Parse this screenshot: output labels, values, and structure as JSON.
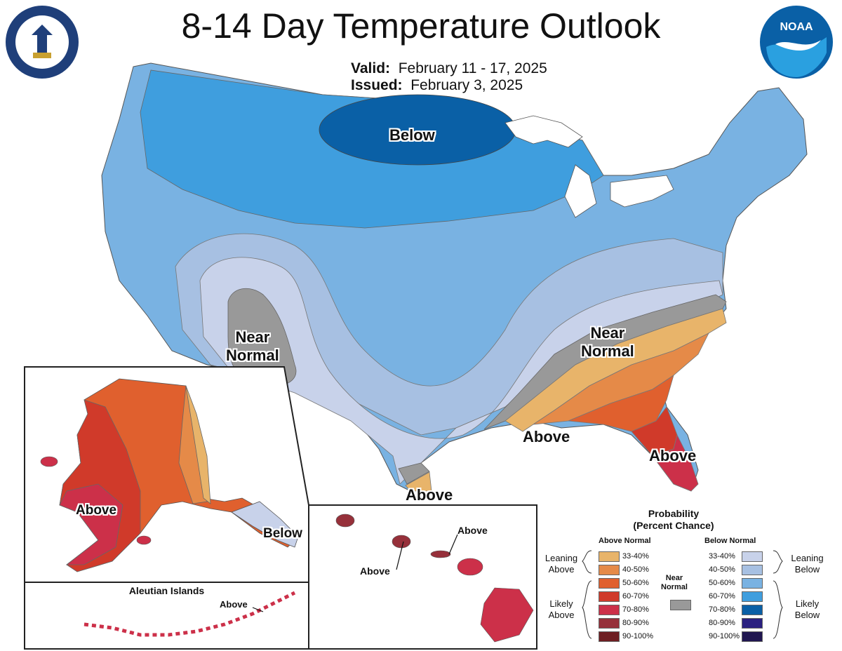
{
  "title": "8-14 Day Temperature Outlook",
  "valid": {
    "label": "Valid:",
    "value": "February 11 - 17, 2025"
  },
  "issued": {
    "label": "Issued:",
    "value": "February 3, 2025"
  },
  "logos": {
    "left": "department-of-commerce-seal",
    "right": "noaa-logo"
  },
  "map_labels": {
    "below_north": "Below",
    "near_normal_southwest": "Near\nNormal",
    "near_normal_southeast": "Near\nNormal",
    "above_gulf": "Above",
    "above_florida": "Above",
    "above_texas": "Above",
    "alaska_above": "Above",
    "alaska_below": "Below",
    "aleutian_title": "Aleutian Islands",
    "aleutian_above": "Above",
    "hawaii_above_1": "Above",
    "hawaii_above_2": "Above"
  },
  "legend": {
    "title": "Probability\n(Percent Chance)",
    "above_header": "Above Normal",
    "below_header": "Below Normal",
    "near_header": "Near\nNormal",
    "leaning_above": "Leaning\nAbove",
    "likely_above": "Likely\nAbove",
    "leaning_below": "Leaning\nBelow",
    "likely_below": "Likely\nBelow",
    "above_classes": [
      {
        "range": "33-40%",
        "color": "#e8b46a"
      },
      {
        "range": "40-50%",
        "color": "#e58a48"
      },
      {
        "range": "50-60%",
        "color": "#e0602e"
      },
      {
        "range": "60-70%",
        "color": "#d03a2a"
      },
      {
        "range": "70-80%",
        "color": "#cc3049"
      },
      {
        "range": "80-90%",
        "color": "#96303a"
      },
      {
        "range": "90-100%",
        "color": "#6e1e22"
      }
    ],
    "below_classes": [
      {
        "range": "33-40%",
        "color": "#c8d2ea"
      },
      {
        "range": "40-50%",
        "color": "#a7c0e2"
      },
      {
        "range": "50-60%",
        "color": "#79b2e2"
      },
      {
        "range": "60-70%",
        "color": "#3f9ede"
      },
      {
        "range": "70-80%",
        "color": "#0a60a6"
      },
      {
        "range": "80-90%",
        "color": "#2a2080"
      },
      {
        "range": "90-100%",
        "color": "#201650"
      }
    ],
    "near_color": "#999999"
  }
}
